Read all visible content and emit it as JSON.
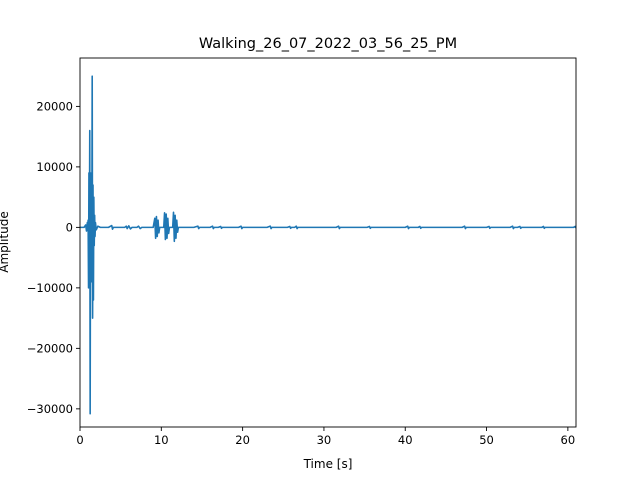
{
  "chart_data": {
    "type": "line",
    "title": "Walking_26_07_2022_03_56_25_PM",
    "xlabel": "Time [s]",
    "ylabel": "Amplitude",
    "xlim": [
      0,
      61
    ],
    "ylim": [
      -33000,
      28000
    ],
    "xticks": [
      0,
      10,
      20,
      30,
      40,
      50,
      60
    ],
    "yticks": [
      -30000,
      -20000,
      -10000,
      0,
      10000,
      20000
    ],
    "grid": false,
    "series_color": "#1f77b4",
    "series": [
      {
        "points": [
          [
            0.0,
            0
          ],
          [
            0.5,
            0
          ],
          [
            0.7,
            400
          ],
          [
            0.8,
            -600
          ],
          [
            0.9,
            800
          ],
          [
            0.95,
            -500
          ],
          [
            1.0,
            1200
          ],
          [
            1.05,
            -10000
          ],
          [
            1.1,
            9000
          ],
          [
            1.15,
            -5000
          ],
          [
            1.2,
            16000
          ],
          [
            1.25,
            -30800
          ],
          [
            1.3,
            9000
          ],
          [
            1.35,
            -9000
          ],
          [
            1.4,
            8000
          ],
          [
            1.45,
            -4000
          ],
          [
            1.5,
            25000
          ],
          [
            1.55,
            -15000
          ],
          [
            1.6,
            7000
          ],
          [
            1.65,
            -12000
          ],
          [
            1.7,
            5000
          ],
          [
            1.75,
            -3000
          ],
          [
            1.8,
            2000
          ],
          [
            1.85,
            -1500
          ],
          [
            1.9,
            800
          ],
          [
            2.0,
            -400
          ],
          [
            2.2,
            200
          ],
          [
            2.5,
            0
          ],
          [
            3.5,
            0
          ],
          [
            3.9,
            300
          ],
          [
            4.0,
            -300
          ],
          [
            4.1,
            0
          ],
          [
            5.5,
            0
          ],
          [
            5.7,
            200
          ],
          [
            5.8,
            -200
          ],
          [
            6.0,
            250
          ],
          [
            6.2,
            -250
          ],
          [
            6.4,
            0
          ],
          [
            7.0,
            0
          ],
          [
            7.2,
            200
          ],
          [
            7.4,
            -200
          ],
          [
            7.6,
            0
          ],
          [
            9.0,
            0
          ],
          [
            9.2,
            1500
          ],
          [
            9.3,
            -1800
          ],
          [
            9.4,
            1800
          ],
          [
            9.5,
            -1500
          ],
          [
            9.6,
            1200
          ],
          [
            9.7,
            -900
          ],
          [
            9.8,
            0
          ],
          [
            10.3,
            0
          ],
          [
            10.4,
            2400
          ],
          [
            10.5,
            -2000
          ],
          [
            10.6,
            2200
          ],
          [
            10.7,
            -1800
          ],
          [
            10.8,
            1500
          ],
          [
            10.9,
            -1000
          ],
          [
            11.0,
            0
          ],
          [
            11.4,
            0
          ],
          [
            11.5,
            2500
          ],
          [
            11.6,
            -2300
          ],
          [
            11.7,
            2000
          ],
          [
            11.8,
            -1800
          ],
          [
            11.9,
            1200
          ],
          [
            12.0,
            -800
          ],
          [
            12.1,
            0
          ],
          [
            14.0,
            0
          ],
          [
            14.5,
            200
          ],
          [
            14.6,
            -200
          ],
          [
            14.7,
            0
          ],
          [
            16.0,
            0
          ],
          [
            16.3,
            200
          ],
          [
            16.4,
            -200
          ],
          [
            16.5,
            0
          ],
          [
            17.0,
            0
          ],
          [
            17.3,
            150
          ],
          [
            17.4,
            -150
          ],
          [
            17.5,
            0
          ],
          [
            19.5,
            0
          ],
          [
            19.8,
            200
          ],
          [
            19.9,
            -200
          ],
          [
            20.0,
            0
          ],
          [
            23.0,
            0
          ],
          [
            23.4,
            200
          ],
          [
            23.5,
            -200
          ],
          [
            23.6,
            0
          ],
          [
            25.5,
            0
          ],
          [
            25.8,
            150
          ],
          [
            25.9,
            -150
          ],
          [
            26.0,
            0
          ],
          [
            26.4,
            0
          ],
          [
            26.6,
            200
          ],
          [
            26.7,
            -200
          ],
          [
            26.8,
            0
          ],
          [
            31.5,
            0
          ],
          [
            31.8,
            200
          ],
          [
            31.9,
            -200
          ],
          [
            32.0,
            0
          ],
          [
            35.3,
            0
          ],
          [
            35.6,
            150
          ],
          [
            35.7,
            -150
          ],
          [
            35.8,
            0
          ],
          [
            40.0,
            0
          ],
          [
            40.3,
            200
          ],
          [
            40.4,
            -200
          ],
          [
            40.5,
            0
          ],
          [
            41.6,
            0
          ],
          [
            41.8,
            150
          ],
          [
            41.9,
            -150
          ],
          [
            42.0,
            0
          ],
          [
            47.0,
            0
          ],
          [
            47.3,
            200
          ],
          [
            47.4,
            -200
          ],
          [
            47.5,
            0
          ],
          [
            50.0,
            0
          ],
          [
            50.3,
            150
          ],
          [
            50.4,
            -150
          ],
          [
            50.5,
            0
          ],
          [
            52.9,
            0
          ],
          [
            53.2,
            200
          ],
          [
            53.3,
            -200
          ],
          [
            53.4,
            0
          ],
          [
            53.8,
            0
          ],
          [
            54.1,
            150
          ],
          [
            54.2,
            -150
          ],
          [
            54.3,
            0
          ],
          [
            56.8,
            0
          ],
          [
            57.0,
            150
          ],
          [
            57.1,
            -150
          ],
          [
            57.2,
            0
          ],
          [
            60.7,
            0
          ],
          [
            60.9,
            150
          ],
          [
            61.0,
            -100
          ]
        ]
      }
    ]
  }
}
